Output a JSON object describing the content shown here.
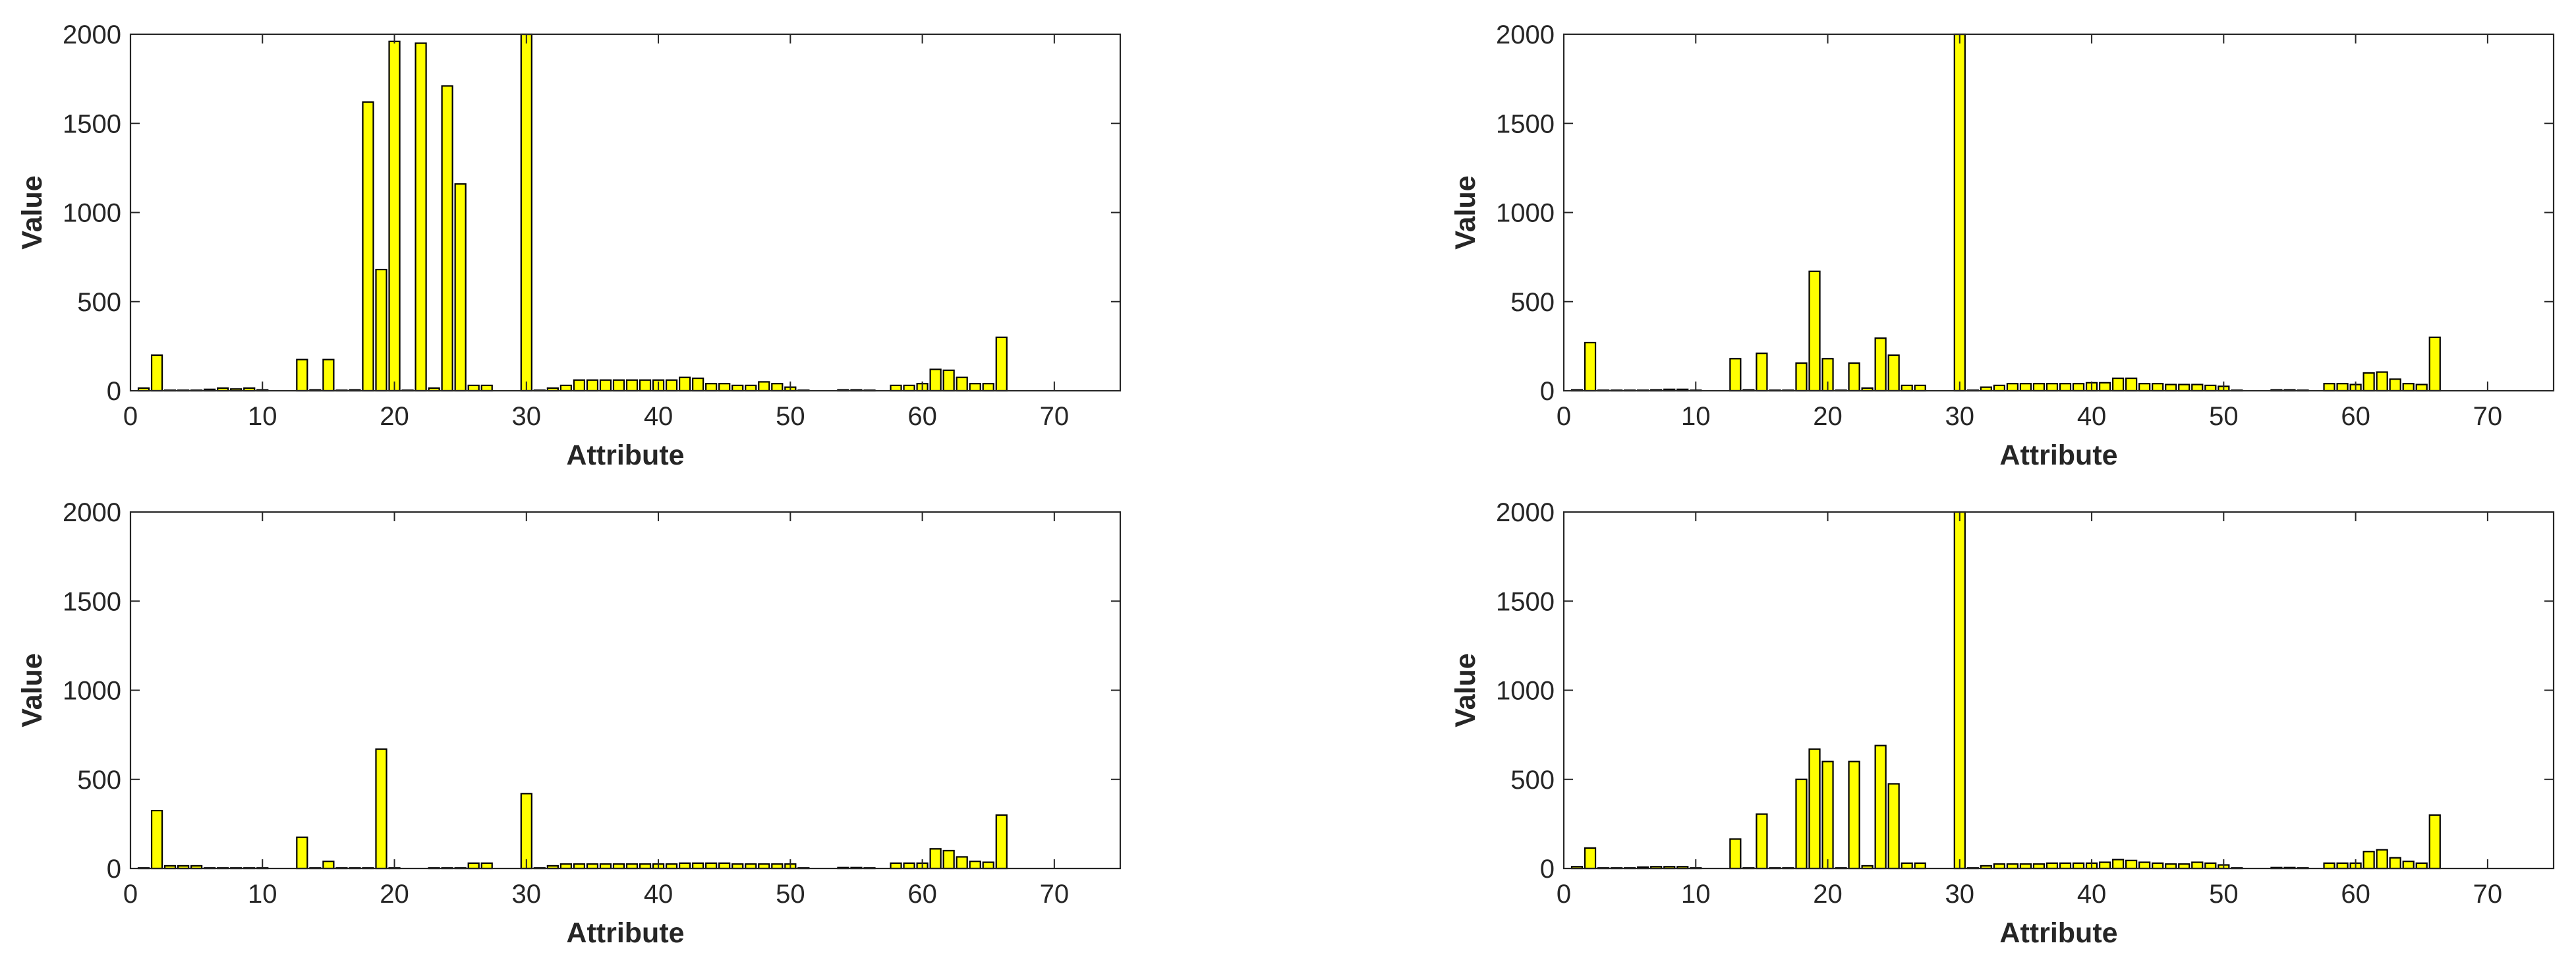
{
  "colors": {
    "bar_fill": "#FFFF00",
    "bar_edge": "#000000",
    "axis": "#262626",
    "background": "#FFFFFF"
  },
  "chart_data": [
    {
      "type": "bar",
      "xlabel": "Attribute",
      "ylabel": "Value",
      "xlim": [
        0,
        75
      ],
      "ylim": [
        0,
        2000
      ],
      "xticks": [
        0,
        10,
        20,
        30,
        40,
        50,
        60,
        70
      ],
      "yticks": [
        0,
        500,
        1000,
        1500,
        2000
      ],
      "grid": false,
      "bar_color": "#FFFF00",
      "x": [
        1,
        2,
        3,
        4,
        5,
        6,
        7,
        8,
        9,
        10,
        11,
        12,
        13,
        14,
        15,
        16,
        17,
        18,
        19,
        20,
        21,
        22,
        23,
        24,
        25,
        26,
        27,
        28,
        29,
        30,
        31,
        32,
        33,
        34,
        35,
        36,
        37,
        38,
        39,
        40,
        41,
        42,
        43,
        44,
        45,
        46,
        47,
        48,
        49,
        50,
        51,
        52,
        53,
        54,
        55,
        56,
        57,
        58,
        59,
        60,
        61,
        62,
        63,
        64,
        65,
        66
      ],
      "values": [
        15,
        200,
        3,
        3,
        3,
        8,
        15,
        10,
        15,
        5,
        0,
        0,
        175,
        5,
        175,
        3,
        5,
        1620,
        680,
        1960,
        3,
        1950,
        15,
        1710,
        1160,
        30,
        30,
        0,
        0,
        2000,
        3,
        15,
        30,
        60,
        60,
        60,
        60,
        60,
        60,
        60,
        60,
        75,
        70,
        40,
        40,
        30,
        30,
        50,
        40,
        20,
        3,
        0,
        0,
        5,
        5,
        3,
        0,
        30,
        30,
        40,
        120,
        115,
        75,
        40,
        40,
        300
      ]
    },
    {
      "type": "bar",
      "xlabel": "Attribute",
      "ylabel": "Value",
      "xlim": [
        0,
        75
      ],
      "ylim": [
        0,
        2000
      ],
      "xticks": [
        0,
        10,
        20,
        30,
        40,
        50,
        60,
        70
      ],
      "yticks": [
        0,
        500,
        1000,
        1500,
        2000
      ],
      "grid": false,
      "bar_color": "#FFFF00",
      "x": [
        1,
        2,
        3,
        4,
        5,
        6,
        7,
        8,
        9,
        10,
        11,
        12,
        13,
        14,
        15,
        16,
        17,
        18,
        19,
        20,
        21,
        22,
        23,
        24,
        25,
        26,
        27,
        28,
        29,
        30,
        31,
        32,
        33,
        34,
        35,
        36,
        37,
        38,
        39,
        40,
        41,
        42,
        43,
        44,
        45,
        46,
        47,
        48,
        49,
        50,
        51,
        52,
        53,
        54,
        55,
        56,
        57,
        58,
        59,
        60,
        61,
        62,
        63,
        64,
        65,
        66
      ],
      "values": [
        5,
        270,
        3,
        3,
        3,
        3,
        5,
        8,
        8,
        3,
        0,
        0,
        180,
        5,
        210,
        3,
        3,
        155,
        670,
        180,
        3,
        155,
        15,
        295,
        200,
        30,
        30,
        0,
        0,
        2000,
        3,
        20,
        30,
        40,
        40,
        40,
        40,
        40,
        40,
        45,
        45,
        70,
        70,
        40,
        40,
        35,
        35,
        35,
        30,
        25,
        3,
        0,
        0,
        5,
        5,
        3,
        0,
        40,
        40,
        35,
        100,
        105,
        65,
        40,
        35,
        300
      ]
    },
    {
      "type": "bar",
      "xlabel": "Attribute",
      "ylabel": "Value",
      "xlim": [
        0,
        75
      ],
      "ylim": [
        0,
        2000
      ],
      "xticks": [
        0,
        10,
        20,
        30,
        40,
        50,
        60,
        70
      ],
      "yticks": [
        0,
        500,
        1000,
        1500,
        2000
      ],
      "grid": false,
      "bar_color": "#FFFF00",
      "x": [
        1,
        2,
        3,
        4,
        5,
        6,
        7,
        8,
        9,
        10,
        11,
        12,
        13,
        14,
        15,
        16,
        17,
        18,
        19,
        20,
        21,
        22,
        23,
        24,
        25,
        26,
        27,
        28,
        29,
        30,
        31,
        32,
        33,
        34,
        35,
        36,
        37,
        38,
        39,
        40,
        41,
        42,
        43,
        44,
        45,
        46,
        47,
        48,
        49,
        50,
        51,
        52,
        53,
        54,
        55,
        56,
        57,
        58,
        59,
        60,
        61,
        62,
        63,
        64,
        65,
        66
      ],
      "values": [
        3,
        325,
        15,
        15,
        15,
        3,
        3,
        3,
        3,
        3,
        0,
        0,
        175,
        3,
        40,
        3,
        3,
        3,
        670,
        3,
        0,
        0,
        3,
        3,
        3,
        30,
        30,
        0,
        0,
        420,
        3,
        15,
        25,
        25,
        25,
        25,
        25,
        25,
        25,
        25,
        25,
        30,
        30,
        30,
        30,
        25,
        25,
        25,
        25,
        25,
        3,
        0,
        0,
        5,
        5,
        3,
        0,
        30,
        30,
        30,
        110,
        100,
        65,
        40,
        35,
        300
      ]
    },
    {
      "type": "bar",
      "xlabel": "Attribute",
      "ylabel": "Value",
      "xlim": [
        0,
        75
      ],
      "ylim": [
        0,
        2000
      ],
      "xticks": [
        0,
        10,
        20,
        30,
        40,
        50,
        60,
        70
      ],
      "yticks": [
        0,
        500,
        1000,
        1500,
        2000
      ],
      "grid": false,
      "bar_color": "#FFFF00",
      "x": [
        1,
        2,
        3,
        4,
        5,
        6,
        7,
        8,
        9,
        10,
        11,
        12,
        13,
        14,
        15,
        16,
        17,
        18,
        19,
        20,
        21,
        22,
        23,
        24,
        25,
        26,
        27,
        28,
        29,
        30,
        31,
        32,
        33,
        34,
        35,
        36,
        37,
        38,
        39,
        40,
        41,
        42,
        43,
        44,
        45,
        46,
        47,
        48,
        49,
        50,
        51,
        52,
        53,
        54,
        55,
        56,
        57,
        58,
        59,
        60,
        61,
        62,
        63,
        64,
        65,
        66
      ],
      "values": [
        10,
        115,
        3,
        3,
        3,
        8,
        10,
        10,
        10,
        3,
        0,
        0,
        165,
        3,
        305,
        3,
        3,
        500,
        670,
        600,
        3,
        600,
        15,
        690,
        475,
        30,
        30,
        0,
        0,
        2000,
        3,
        15,
        25,
        25,
        25,
        25,
        30,
        30,
        30,
        30,
        35,
        50,
        45,
        35,
        30,
        25,
        25,
        35,
        30,
        20,
        3,
        0,
        0,
        5,
        5,
        3,
        0,
        30,
        30,
        30,
        95,
        105,
        60,
        40,
        30,
        300
      ]
    }
  ]
}
